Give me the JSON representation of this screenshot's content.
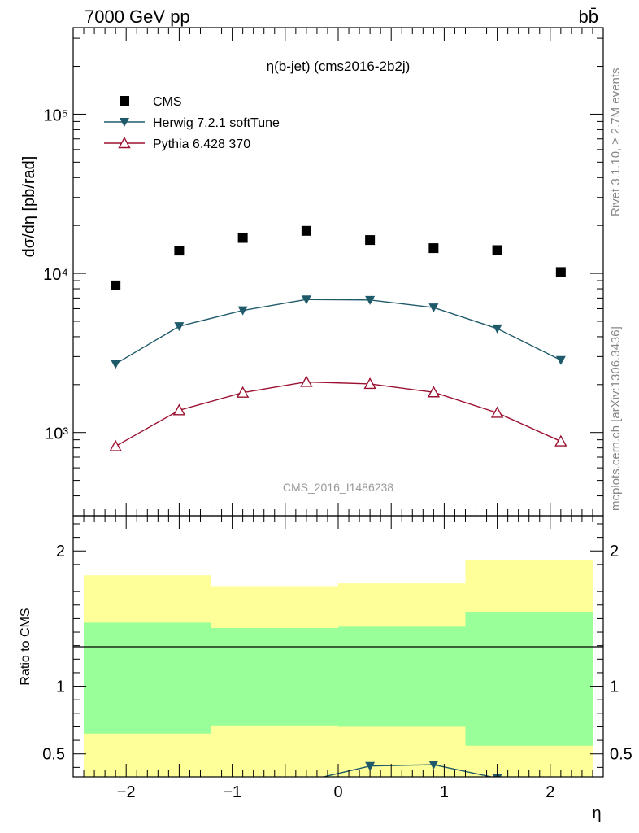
{
  "header": {
    "left": "7000 GeV pp",
    "right": "bb̄"
  },
  "side_labels": {
    "rivet": "Rivet 3.1.10, ≥ 2.7M events",
    "mcplots": "mcplots.cern.ch [arXiv:1306.3436]"
  },
  "chart_data": [
    {
      "type": "scatter",
      "title": "η(b-jet) (cms2016-2b2j)",
      "watermark": "CMS_2016_I1486238",
      "ylabel": "dσ/dη [pb/rad]",
      "yscale": "log",
      "ylim": [
        300,
        350000
      ],
      "xlim": [
        -2.5,
        2.5
      ],
      "y_ticks": [
        {
          "value": 1000,
          "label": "10³"
        },
        {
          "value": 10000,
          "label": "10⁴"
        },
        {
          "value": 100000,
          "label": "10⁵"
        }
      ],
      "legend_position": "top-left",
      "x": [
        -2.1,
        -1.5,
        -0.9,
        -0.3,
        0.3,
        0.9,
        1.5,
        2.1
      ],
      "series": [
        {
          "name": "CMS",
          "marker": "square",
          "color": "#000000",
          "values": [
            8400,
            13900,
            16700,
            18500,
            16200,
            14400,
            14000,
            10200
          ]
        },
        {
          "name": "Herwig 7.2.1 softTune",
          "marker": "triangle-down",
          "color": "#1f5a6a",
          "values": [
            2700,
            4650,
            5850,
            6850,
            6800,
            6100,
            4500,
            2850
          ]
        },
        {
          "name": "Pythia 6.428 370",
          "marker": "triangle-up-open",
          "color": "#9b1030",
          "values": [
            820,
            1380,
            1780,
            2080,
            2020,
            1790,
            1330,
            880
          ]
        }
      ]
    },
    {
      "type": "line",
      "ylabel": "Ratio to CMS",
      "xlabel": "η",
      "ylim": [
        0.33,
        2.26
      ],
      "xlim": [
        -2.5,
        2.5
      ],
      "x_ticks": [
        {
          "value": -2,
          "label": "−2"
        },
        {
          "value": -1,
          "label": "−1"
        },
        {
          "value": 0,
          "label": "0"
        },
        {
          "value": 1,
          "label": "1"
        },
        {
          "value": 2,
          "label": "2"
        }
      ],
      "y_ticks": [
        {
          "value": 0.5,
          "label": "0.5"
        },
        {
          "value": 1,
          "label": "1"
        },
        {
          "value": 2,
          "label": "2"
        }
      ],
      "bins": [
        {
          "lo": -2.4,
          "hi": -1.2,
          "yellow": [
            0.33,
            1.82
          ],
          "green": [
            0.65,
            1.47
          ]
        },
        {
          "lo": -1.2,
          "hi": 0.0,
          "yellow": [
            0.33,
            1.74
          ],
          "green": [
            0.71,
            1.43
          ]
        },
        {
          "lo": 0.0,
          "hi": 1.2,
          "yellow": [
            0.33,
            1.76
          ],
          "green": [
            0.7,
            1.44
          ]
        },
        {
          "lo": 1.2,
          "hi": 2.4,
          "yellow": [
            0.33,
            1.93
          ],
          "green": [
            0.56,
            1.55
          ]
        }
      ],
      "series": [
        {
          "name": "Herwig 7.2.1 softTune",
          "color": "#1f5a6a",
          "x": [
            -0.3,
            0.3,
            0.9,
            1.5
          ],
          "values": [
            0.3,
            0.41,
            0.42,
            0.32
          ]
        }
      ]
    }
  ]
}
